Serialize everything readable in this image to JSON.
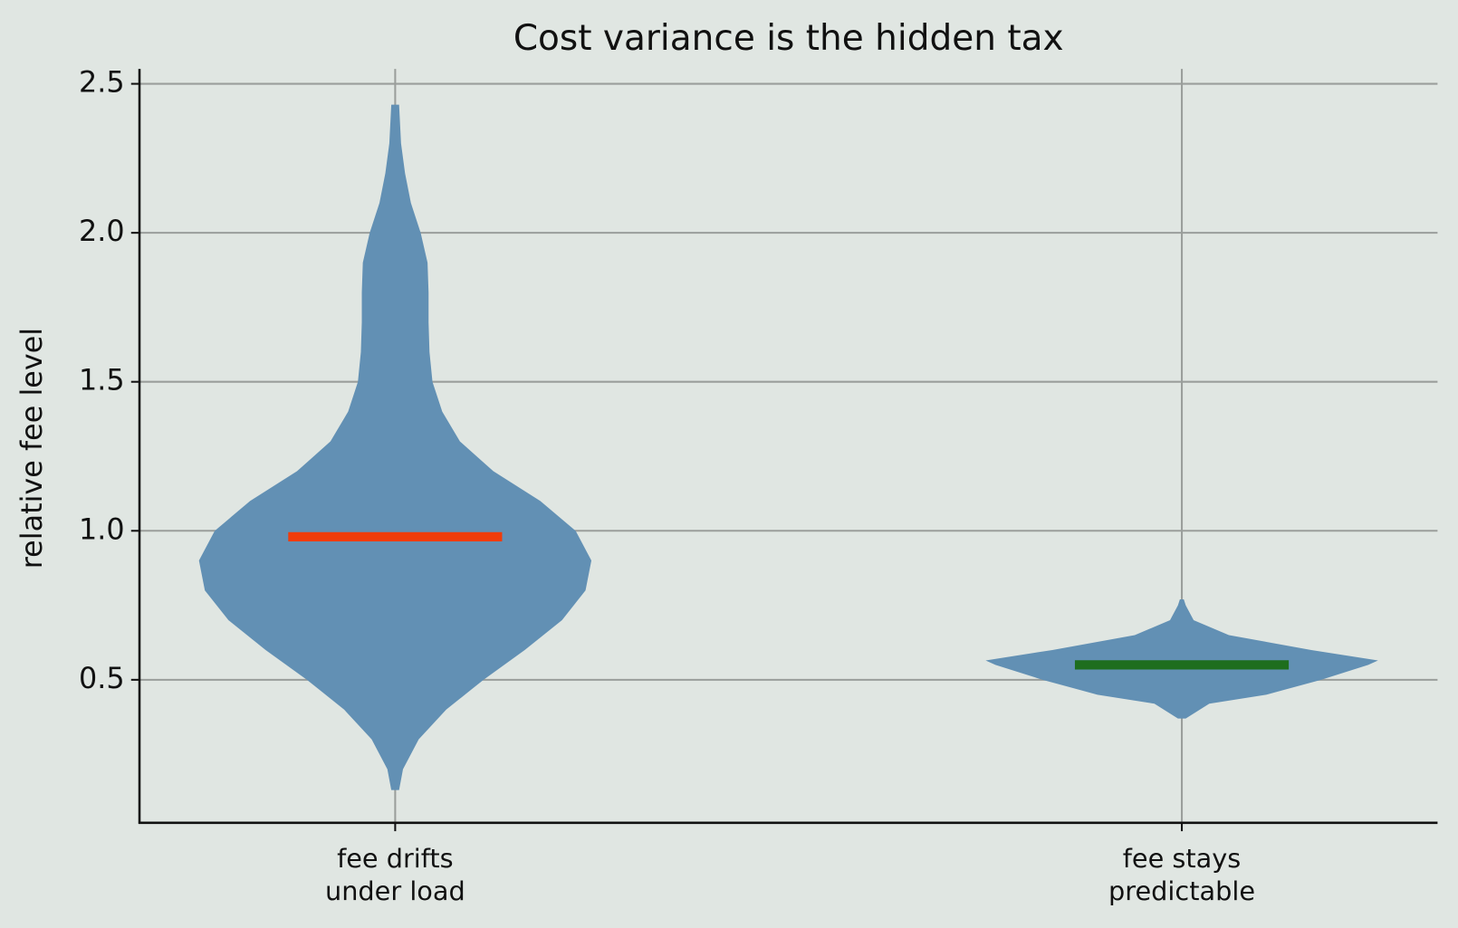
{
  "chart_data": {
    "type": "violin",
    "title": "Cost variance is the hidden tax",
    "ylabel": "relative fee level",
    "categories": [
      [
        "fee drifts",
        "under load"
      ],
      [
        "fee stays",
        "predictable"
      ]
    ],
    "ylim": [
      0.02,
      2.55
    ],
    "yticks": [
      0.5,
      {
        "value": 1.0,
        "label": "1.0"
      },
      1.5,
      {
        "value": 2.0,
        "label": "2.0"
      },
      2.5
    ],
    "grid": true,
    "color": "#6290b4",
    "violins": [
      {
        "y": [
          0.13,
          0.2,
          0.3,
          0.4,
          0.5,
          0.6,
          0.7,
          0.8,
          0.9,
          1.0,
          1.1,
          1.2,
          1.3,
          1.4,
          1.5,
          1.6,
          1.7,
          1.8,
          1.9,
          2.0,
          2.1,
          2.2,
          2.3,
          2.43
        ],
        "density": [
          0.02,
          0.04,
          0.12,
          0.26,
          0.45,
          0.66,
          0.85,
          0.97,
          1.0,
          0.92,
          0.74,
          0.5,
          0.33,
          0.24,
          0.19,
          0.175,
          0.17,
          0.17,
          0.165,
          0.13,
          0.08,
          0.05,
          0.03,
          0.02
        ],
        "median": 0.98,
        "median_color": "#f03c0a"
      },
      {
        "y": [
          0.37,
          0.42,
          0.45,
          0.5,
          0.55,
          0.565,
          0.6,
          0.65,
          0.7,
          0.75,
          0.77
        ],
        "density": [
          0.02,
          0.14,
          0.43,
          0.71,
          0.95,
          1.0,
          0.66,
          0.24,
          0.06,
          0.02,
          0.01
        ],
        "median": 0.55,
        "median_color": "#1e6e1e"
      }
    ]
  }
}
